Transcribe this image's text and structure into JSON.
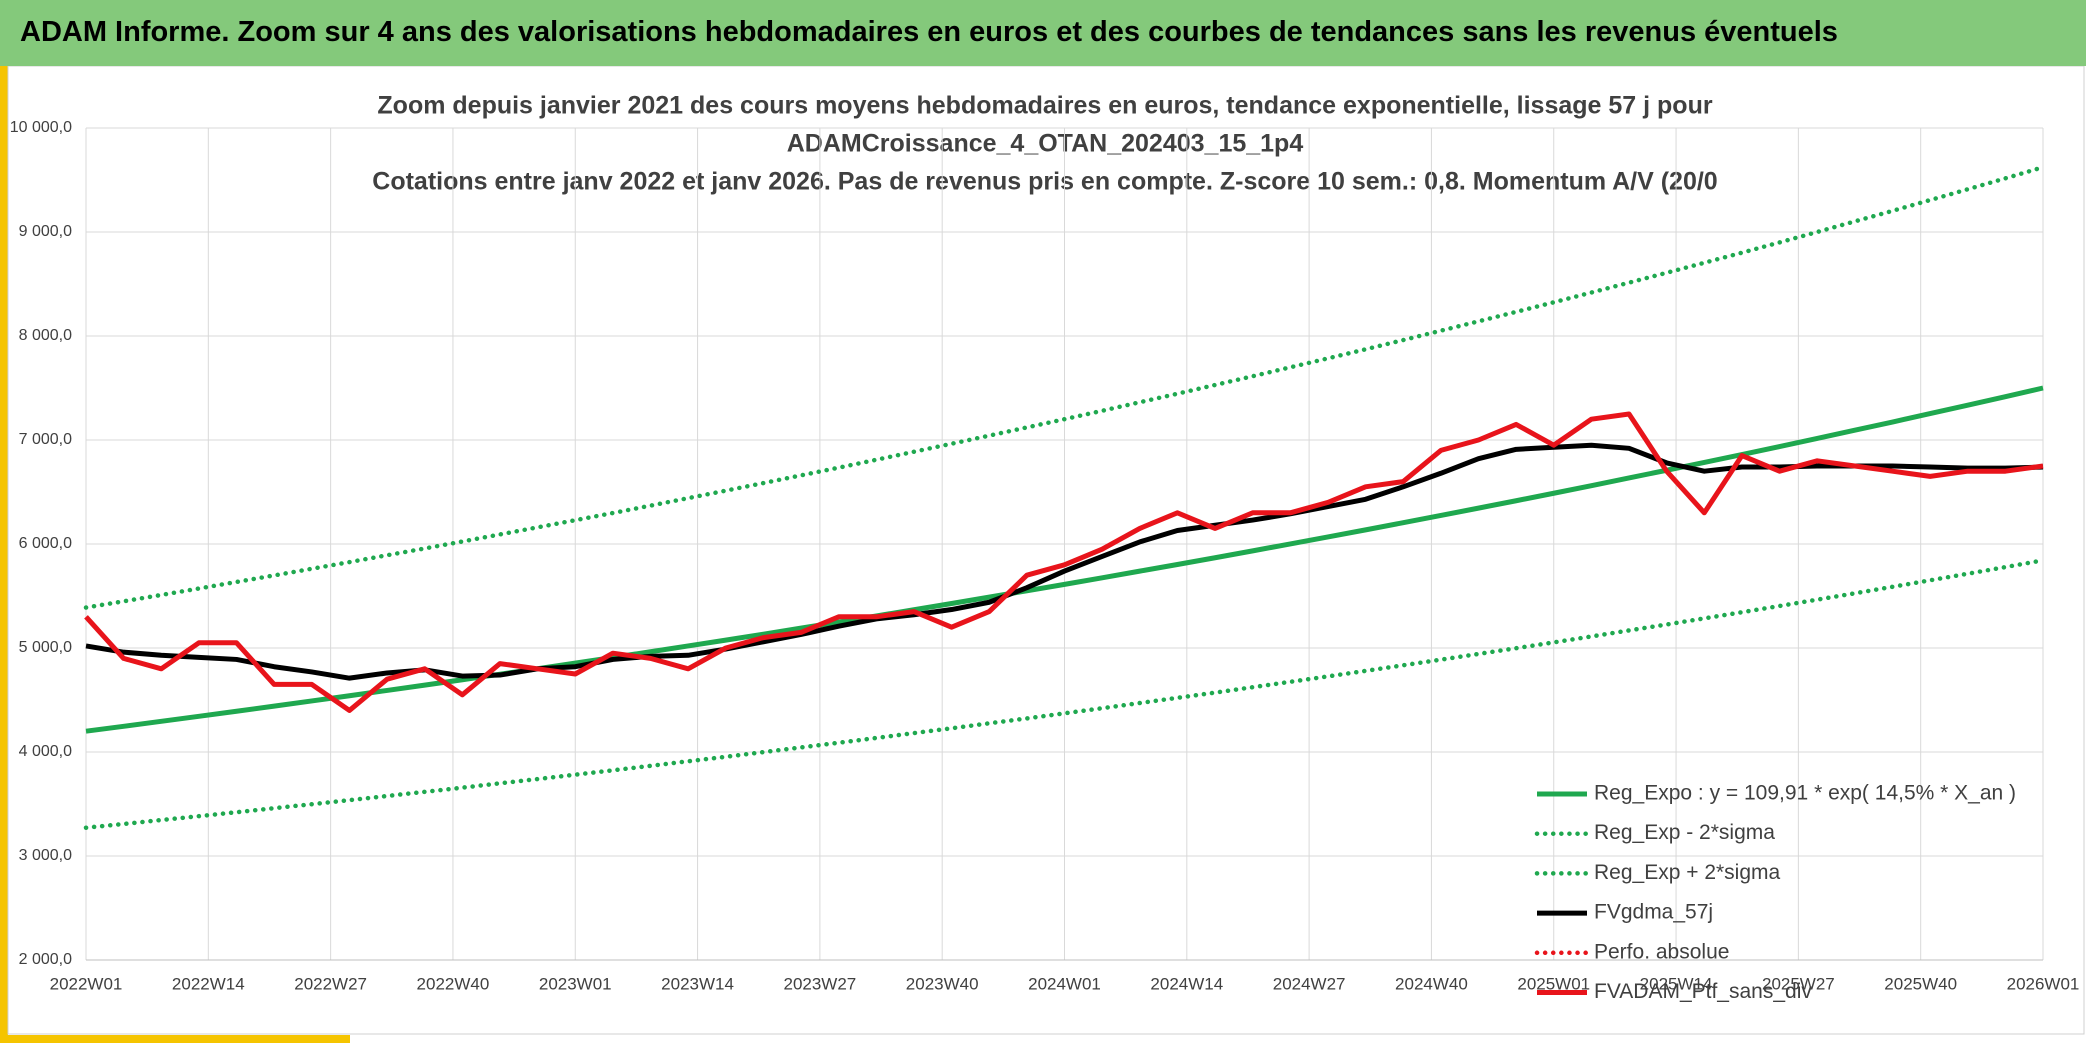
{
  "header": {
    "title": "ADAM Informe. Zoom sur 4 ans des valorisations hebdomadaires en euros et des courbes de tendances sans les revenus éventuels"
  },
  "chart_data": {
    "type": "line",
    "title": [
      "Zoom depuis janvier 2021 des cours moyens hebdomadaires en euros, tendance exponentielle, lissage 57 j pour",
      "ADAMCroissance_4_OTAN_202403_15_1p4",
      "Cotations entre janv 2022 et janv 2026. Pas de revenus pris en compte. Z-score 10 sem.: 0,8. Momentum A/V (20/0"
    ],
    "x": [
      0,
      4,
      8,
      12,
      16,
      20,
      24,
      28,
      32,
      36,
      40,
      44,
      48,
      52,
      56,
      60,
      64,
      68,
      72,
      76,
      80,
      84,
      88,
      92,
      96,
      100,
      104,
      108,
      112,
      116,
      120,
      124,
      128,
      132,
      136,
      140,
      144,
      148,
      152,
      156,
      160,
      164,
      168,
      172,
      176,
      180,
      184,
      188,
      192,
      196,
      200,
      204,
      208
    ],
    "xlim": [
      0,
      208
    ],
    "xticks": [
      {
        "value": 0,
        "label": "2022W01"
      },
      {
        "value": 13,
        "label": "2022W14"
      },
      {
        "value": 26,
        "label": "2022W27"
      },
      {
        "value": 39,
        "label": "2022W40"
      },
      {
        "value": 52,
        "label": "2023W01"
      },
      {
        "value": 65,
        "label": "2023W14"
      },
      {
        "value": 78,
        "label": "2023W27"
      },
      {
        "value": 91,
        "label": "2023W40"
      },
      {
        "value": 104,
        "label": "2024W01"
      },
      {
        "value": 117,
        "label": "2024W14"
      },
      {
        "value": 130,
        "label": "2024W27"
      },
      {
        "value": 143,
        "label": "2024W40"
      },
      {
        "value": 156,
        "label": "2025W01"
      },
      {
        "value": 169,
        "label": "2025W14"
      },
      {
        "value": 182,
        "label": "2025W27"
      },
      {
        "value": 195,
        "label": "2025W40"
      },
      {
        "value": 208,
        "label": "2026W01"
      }
    ],
    "ylim": [
      2000,
      10000
    ],
    "yticks": [
      {
        "value": 2000,
        "label": "2 000,0"
      },
      {
        "value": 3000,
        "label": "3 000,0"
      },
      {
        "value": 4000,
        "label": "4 000,0"
      },
      {
        "value": 5000,
        "label": "5 000,0"
      },
      {
        "value": 6000,
        "label": "6 000,0"
      },
      {
        "value": 7000,
        "label": "7 000,0"
      },
      {
        "value": 8000,
        "label": "8 000,0"
      },
      {
        "value": 9000,
        "label": "9 000,0"
      },
      {
        "value": 10000,
        "label": "10 000,0"
      }
    ],
    "grid": true,
    "legend": "bottom-right",
    "series": [
      {
        "name": "Reg_Expo : y = 109,91 * exp( 14,5% *  X_an )",
        "color": "#1fa84f",
        "dash": "solid",
        "values": [
          4200,
          4247,
          4295,
          4343,
          4392,
          4441,
          4491,
          4541,
          4592,
          4643,
          4695,
          4748,
          4801,
          4855,
          4909,
          4964,
          5020,
          5076,
          5133,
          5191,
          5249,
          5308,
          5368,
          5428,
          5489,
          5550,
          5612,
          5675,
          5739,
          5803,
          5868,
          5934,
          6001,
          6068,
          6136,
          6205,
          6275,
          6345,
          6416,
          6488,
          6561,
          6635,
          6709,
          6784,
          6860,
          6937,
          7015,
          7094,
          7173,
          7254,
          7335,
          7417,
          7500
        ]
      },
      {
        "name": "Reg_Exp - 2*sigma",
        "color": "#1fa84f",
        "dash": "dotted",
        "values": [
          3272,
          3308,
          3346,
          3383,
          3421,
          3460,
          3498,
          3537,
          3577,
          3617,
          3657,
          3699,
          3740,
          3782,
          3824,
          3867,
          3911,
          3954,
          3999,
          4044,
          4089,
          4135,
          4182,
          4228,
          4276,
          4323,
          4372,
          4421,
          4471,
          4521,
          4571,
          4623,
          4675,
          4727,
          4780,
          4834,
          4888,
          4943,
          4998,
          5054,
          5111,
          5169,
          5226,
          5285,
          5344,
          5404,
          5465,
          5526,
          5588,
          5651,
          5714,
          5778,
          5843
        ]
      },
      {
        "name": "Reg_Exp + 2*sigma",
        "color": "#1fa84f",
        "dash": "dotted",
        "values": [
          5389,
          5449,
          5510,
          5572,
          5635,
          5698,
          5762,
          5826,
          5892,
          5957,
          6024,
          6092,
          6160,
          6229,
          6298,
          6369,
          6441,
          6513,
          6586,
          6660,
          6734,
          6810,
          6887,
          6964,
          7042,
          7121,
          7200,
          7281,
          7363,
          7445,
          7529,
          7613,
          7699,
          7785,
          7872,
          7961,
          8051,
          8141,
          8232,
          8324,
          8418,
          8513,
          8608,
          8704,
          8801,
          8900,
          9000,
          9102,
          9203,
          9307,
          9411,
          9516,
          9623
        ]
      },
      {
        "name": "FVgdma_57j",
        "color": "#000000",
        "dash": "solid",
        "values": [
          5020,
          4960,
          4930,
          4910,
          4890,
          4820,
          4770,
          4710,
          4760,
          4790,
          4730,
          4740,
          4800,
          4820,
          4890,
          4920,
          4930,
          4990,
          5060,
          5130,
          5210,
          5280,
          5320,
          5370,
          5440,
          5580,
          5740,
          5880,
          6020,
          6130,
          6180,
          6230,
          6290,
          6360,
          6430,
          6550,
          6680,
          6820,
          6910,
          6930,
          6950,
          6920,
          6780,
          6700,
          6740,
          6740,
          6750,
          6750,
          6750,
          6740,
          6730,
          6730,
          6740
        ]
      },
      {
        "name": "Perfo. absolue",
        "color": "#e8141b",
        "dash": "dotted",
        "values": [
          null,
          null,
          null,
          null,
          null,
          null,
          null,
          null,
          null,
          null,
          null,
          null,
          null,
          null,
          null,
          null,
          null,
          null,
          null,
          null,
          null,
          null,
          null,
          null,
          null,
          null,
          null,
          null,
          null,
          null,
          null,
          null,
          null,
          null,
          null,
          null,
          null,
          null,
          null,
          null,
          null,
          null,
          null,
          null,
          null,
          null,
          null,
          null,
          null,
          null,
          null,
          null,
          null
        ]
      },
      {
        "name": "FVADAM_Ptf_sans_div",
        "color": "#e8141b",
        "dash": "solid",
        "values": [
          5300,
          4900,
          4800,
          5050,
          5050,
          4650,
          4650,
          4400,
          4700,
          4800,
          4550,
          4850,
          4800,
          4750,
          4950,
          4900,
          4800,
          5000,
          5100,
          5150,
          5300,
          5300,
          5350,
          5200,
          5350,
          5700,
          5800,
          5950,
          6150,
          6300,
          6150,
          6300,
          6300,
          6400,
          6550,
          6600,
          6900,
          7000,
          7150,
          6950,
          7200,
          7250,
          6700,
          6300,
          6850,
          6700,
          6800,
          6750,
          6700,
          6650,
          6700,
          6700,
          6750
        ]
      }
    ]
  }
}
